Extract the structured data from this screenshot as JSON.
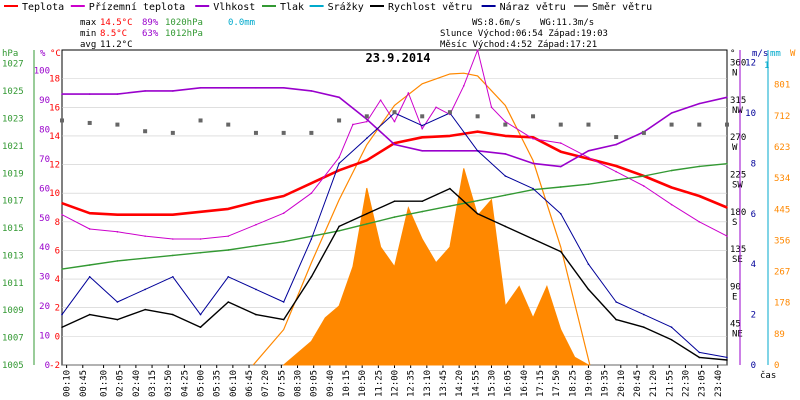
{
  "legend": [
    {
      "label": "Teplota",
      "color": "#ff0000"
    },
    {
      "label": "Přízemní teplota",
      "color": "#cc00cc"
    },
    {
      "label": "Vlhkost",
      "color": "#9900cc"
    },
    {
      "label": "Tlak",
      "color": "#339933"
    },
    {
      "label": "Srážky",
      "color": "#00aacc"
    },
    {
      "label": "Rychlost větru",
      "color": "#000000"
    },
    {
      "label": "Náraz větru",
      "color": "#000099"
    },
    {
      "label": "Směr větru",
      "color": "#666666"
    }
  ],
  "stats": {
    "max_label": "max",
    "max_temp": "14.5°C",
    "max_hum": "89%",
    "max_press": "1020hPa",
    "max_rain": "0.0mm",
    "min_label": "min",
    "min_temp": "8.5°C",
    "min_hum": "63%",
    "min_press": "1012hPa",
    "avg_label": "avg",
    "avg_temp": "11.2°C",
    "ws": "WS:8.6m/s",
    "wg": "WG:11.3m/s",
    "sun": "Slunce Východ:06:54  Západ:19:03",
    "moon": "Měsíc  Východ:4:52  Západ:17:21"
  },
  "date": "23.9.2014",
  "axes": {
    "hpa_unit": "hPa",
    "pct_unit": "%",
    "c_unit": "°C",
    "deg_unit": "°",
    "ms_unit": "m/s",
    "mm_unit": "mm",
    "w_unit": "W",
    "time_label": "čas",
    "hpa_ticks": [
      "1027",
      "1025",
      "1023",
      "1021",
      "1019",
      "1017",
      "1015",
      "1013",
      "1011",
      "1009",
      "1007",
      "1005"
    ],
    "pct_ticks": [
      "100",
      "90",
      "80",
      "70",
      "60",
      "50",
      "40",
      "30",
      "20",
      "10",
      "0"
    ],
    "c_ticks": [
      "18",
      "16",
      "14",
      "12",
      "10",
      "8",
      "6",
      "4",
      "2",
      "0",
      "-2"
    ],
    "dir_ticks": [
      {
        "deg": "360",
        "dir": "N"
      },
      {
        "deg": "315",
        "dir": "NW"
      },
      {
        "deg": "270",
        "dir": "W"
      },
      {
        "deg": "225",
        "dir": "SW"
      },
      {
        "deg": "180",
        "dir": "S"
      },
      {
        "deg": "135",
        "dir": "SE"
      },
      {
        "deg": "90",
        "dir": "E"
      },
      {
        "deg": "45",
        "dir": "NE"
      }
    ],
    "ms_ticks": [
      "12",
      "10",
      "8",
      "6",
      "4",
      "2",
      "0"
    ],
    "mm_ticks": [
      "1"
    ],
    "w_ticks": [
      "801",
      "712",
      "623",
      "534",
      "445",
      "356",
      "267",
      "178",
      "89",
      "0"
    ],
    "time_ticks": [
      "00:10",
      "00:45",
      "01:30",
      "02:05",
      "02:40",
      "03:15",
      "03:50",
      "04:25",
      "05:00",
      "05:35",
      "06:10",
      "06:45",
      "07:20",
      "07:55",
      "08:30",
      "09:05",
      "09:40",
      "10:15",
      "10:50",
      "11:25",
      "12:00",
      "12:35",
      "13:10",
      "13:45",
      "14:20",
      "14:55",
      "15:30",
      "16:05",
      "16:40",
      "17:15",
      "17:50",
      "18:25",
      "19:00",
      "19:35",
      "20:10",
      "20:45",
      "21:20",
      "21:55",
      "22:30",
      "23:05",
      "23:40"
    ]
  },
  "chart_data": {
    "type": "line",
    "title": "23.9.2014",
    "x_unit": "hours",
    "xlim": [
      0,
      24
    ],
    "series": [
      {
        "name": "Teplota",
        "axis": "°C",
        "ylim": [
          -2,
          20
        ],
        "x": [
          0,
          1,
          2,
          3,
          4,
          5,
          6,
          7,
          8,
          9,
          10,
          11,
          12,
          13,
          14,
          15,
          16,
          17,
          18,
          19,
          20,
          21,
          22,
          23,
          24
        ],
        "values": [
          9.3,
          8.6,
          8.5,
          8.5,
          8.5,
          8.7,
          8.9,
          9.4,
          9.8,
          10.7,
          11.6,
          12.3,
          13.5,
          13.9,
          14.0,
          14.3,
          14.0,
          13.9,
          12.9,
          12.4,
          11.9,
          11.2,
          10.4,
          9.8,
          9.0
        ]
      },
      {
        "name": "Přízemní teplota",
        "axis": "°C",
        "ylim": [
          -2,
          20
        ],
        "x": [
          0,
          1,
          2,
          3,
          4,
          5,
          6,
          7,
          8,
          9,
          10,
          10.5,
          11,
          11.5,
          12,
          12.5,
          13,
          13.5,
          14,
          14.5,
          15,
          15.5,
          16,
          17,
          18,
          19,
          20,
          21,
          22,
          23,
          24
        ],
        "values": [
          8.5,
          7.5,
          7.3,
          7.0,
          6.8,
          6.8,
          7.0,
          7.8,
          8.6,
          10.0,
          12.5,
          14.8,
          15.0,
          16.5,
          15.0,
          17.0,
          14.5,
          16.0,
          15.5,
          17.5,
          20.0,
          16.0,
          15.0,
          13.8,
          13.5,
          12.5,
          11.5,
          10.5,
          9.2,
          8.0,
          7.0
        ]
      },
      {
        "name": "Vlhkost",
        "axis": "%",
        "ylim": [
          0,
          100
        ],
        "x": [
          0,
          1,
          2,
          3,
          4,
          5,
          6,
          7,
          8,
          9,
          10,
          11,
          12,
          13,
          14,
          15,
          16,
          17,
          18,
          19,
          20,
          21,
          22,
          23,
          24
        ],
        "values": [
          86,
          86,
          86,
          87,
          87,
          88,
          88,
          88,
          88,
          87,
          85,
          78,
          70,
          68,
          68,
          68,
          67,
          64,
          63,
          68,
          70,
          74,
          80,
          83,
          85
        ]
      },
      {
        "name": "Tlak",
        "axis": "hPa",
        "ylim": [
          1005,
          1028
        ],
        "x": [
          0,
          1,
          2,
          3,
          4,
          5,
          6,
          7,
          8,
          9,
          10,
          11,
          12,
          13,
          14,
          15,
          16,
          17,
          18,
          19,
          20,
          21,
          22,
          23,
          24
        ],
        "values": [
          1012.0,
          1012.3,
          1012.6,
          1012.8,
          1013.0,
          1013.2,
          1013.4,
          1013.7,
          1014.0,
          1014.4,
          1014.8,
          1015.3,
          1015.8,
          1016.2,
          1016.6,
          1017.0,
          1017.4,
          1017.8,
          1018.0,
          1018.2,
          1018.5,
          1018.8,
          1019.2,
          1019.5,
          1019.7
        ]
      },
      {
        "name": "Rychlost větru",
        "axis": "m/s",
        "ylim": [
          0,
          12.5
        ],
        "x": [
          0,
          1,
          2,
          3,
          4,
          5,
          6,
          7,
          8,
          9,
          10,
          11,
          12,
          13,
          14,
          15,
          16,
          17,
          18,
          19,
          20,
          21,
          22,
          23,
          24
        ],
        "values": [
          1.5,
          2.0,
          1.8,
          2.2,
          2.0,
          1.5,
          2.5,
          2.0,
          1.8,
          3.5,
          5.5,
          6.0,
          6.5,
          6.5,
          7.0,
          6.0,
          5.5,
          5.0,
          4.5,
          3.0,
          1.8,
          1.5,
          1.0,
          0.3,
          0.2
        ]
      },
      {
        "name": "Náraz větru",
        "axis": "m/s",
        "ylim": [
          0,
          12.5
        ],
        "x": [
          0,
          1,
          2,
          3,
          4,
          5,
          6,
          7,
          8,
          9,
          10,
          11,
          12,
          13,
          14,
          15,
          16,
          17,
          18,
          19,
          20,
          21,
          22,
          23,
          24
        ],
        "values": [
          2.0,
          3.5,
          2.5,
          3.0,
          3.5,
          2.0,
          3.5,
          3.0,
          2.5,
          5.0,
          8.0,
          9.0,
          10.0,
          9.5,
          10.0,
          8.5,
          7.5,
          7.0,
          6.0,
          4.0,
          2.5,
          2.0,
          1.5,
          0.5,
          0.3
        ]
      },
      {
        "name": "Směr větru",
        "axis": "°",
        "ylim": [
          0,
          380
        ],
        "x": [
          0,
          1,
          2,
          3,
          4,
          5,
          6,
          7,
          8,
          9,
          10,
          11,
          12,
          13,
          14,
          15,
          16,
          17,
          18,
          19,
          20,
          21,
          22,
          23,
          24
        ],
        "values": [
          295,
          292,
          290,
          282,
          280,
          295,
          290,
          280,
          280,
          280,
          295,
          300,
          305,
          300,
          305,
          300,
          290,
          300,
          290,
          290,
          275,
          280,
          290,
          290,
          290
        ]
      }
    ],
    "solar": {
      "name": "solar radiation",
      "axis": "W",
      "ylim": [
        0,
        801
      ],
      "x": [
        8.0,
        9.0,
        9.5,
        10.0,
        10.5,
        11.0,
        11.5,
        12.0,
        12.5,
        13.0,
        13.5,
        14.0,
        14.5,
        15.0,
        15.5,
        16.0,
        16.5,
        17.0,
        17.5,
        18.0,
        18.5,
        19.0
      ],
      "values": [
        0,
        60,
        120,
        150,
        250,
        450,
        300,
        250,
        400,
        320,
        260,
        300,
        500,
        380,
        420,
        150,
        200,
        120,
        200,
        90,
        20,
        0
      ]
    },
    "solar_theoretical": {
      "axis": "W",
      "ylim": [
        0,
        801
      ],
      "x": [
        6.9,
        8,
        9,
        10,
        11,
        12,
        13,
        14,
        14.5,
        15,
        16,
        17,
        18,
        19.05
      ],
      "values": [
        0,
        90,
        260,
        420,
        560,
        660,
        715,
        740,
        742,
        735,
        660,
        520,
        300,
        0
      ]
    }
  }
}
